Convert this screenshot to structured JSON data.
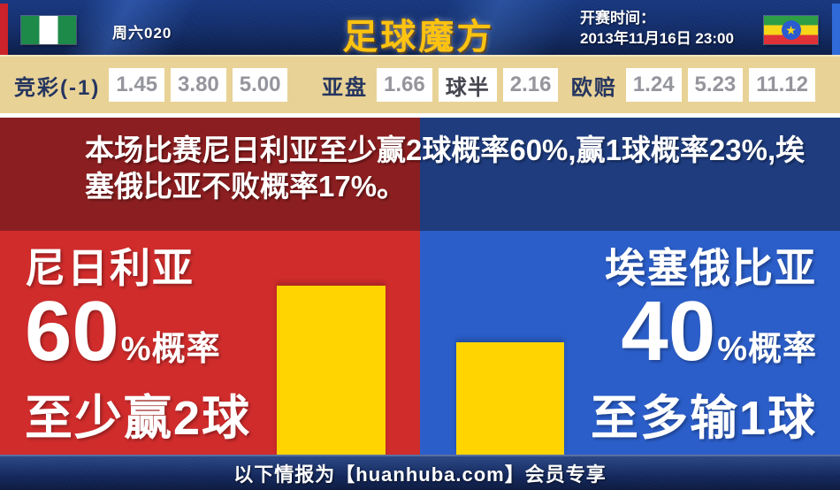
{
  "header": {
    "match_code": "周六020",
    "logo": "足球魔方",
    "kickoff_label": "开赛时间：",
    "kickoff_time": "2013年11月16日 23:00"
  },
  "icons": {
    "home_flag": "nigeria-flag",
    "away_flag": "ethiopia-flag",
    "ethiopia_star": "★"
  },
  "odds": {
    "jingcai": {
      "label": "竞彩(-1)",
      "values": [
        "1.45",
        "3.80",
        "5.00"
      ]
    },
    "yapan": {
      "label": "亚盘",
      "values": [
        "1.66",
        "球半",
        "2.16"
      ]
    },
    "oupei": {
      "label": "欧赔",
      "values": [
        "1.24",
        "5.23",
        "11.12"
      ]
    }
  },
  "summary": "本场比赛尼日利亚至少赢2球概率60%,赢1球概率23%,埃塞俄比亚不败概率17%。",
  "left_panel": {
    "team": "尼日利亚",
    "percent": "60",
    "percent_suffix": "%概率",
    "outcome": "至少赢2球"
  },
  "right_panel": {
    "team": "埃塞俄比亚",
    "percent": "40",
    "percent_suffix": "%概率",
    "outcome": "至多输1球"
  },
  "footer": {
    "text": "以下情报为【huanhuba.com】会员专享"
  },
  "colors": {
    "panel_red": "#d02c2c",
    "panel_blue": "#2b5ec9",
    "band_dark_red": "#8b1e20",
    "band_dark_blue": "#1e3c7e",
    "bar_yellow": "#ffd400",
    "odds_bg": "#e8d296",
    "header_blue": "#122c68",
    "accent_red": "#cc2229",
    "accent_blue": "#2f6bd8"
  },
  "chart_data": {
    "type": "bar",
    "title": "",
    "categories": [
      "尼日利亚",
      "埃塞俄比亚"
    ],
    "values": [
      60,
      40
    ],
    "unit": "%",
    "annotations": [
      "至少赢2球",
      "至多输1球"
    ],
    "bar_color": "#ffd400",
    "ylim": [
      0,
      79.5
    ],
    "grid": false,
    "legend": false
  }
}
